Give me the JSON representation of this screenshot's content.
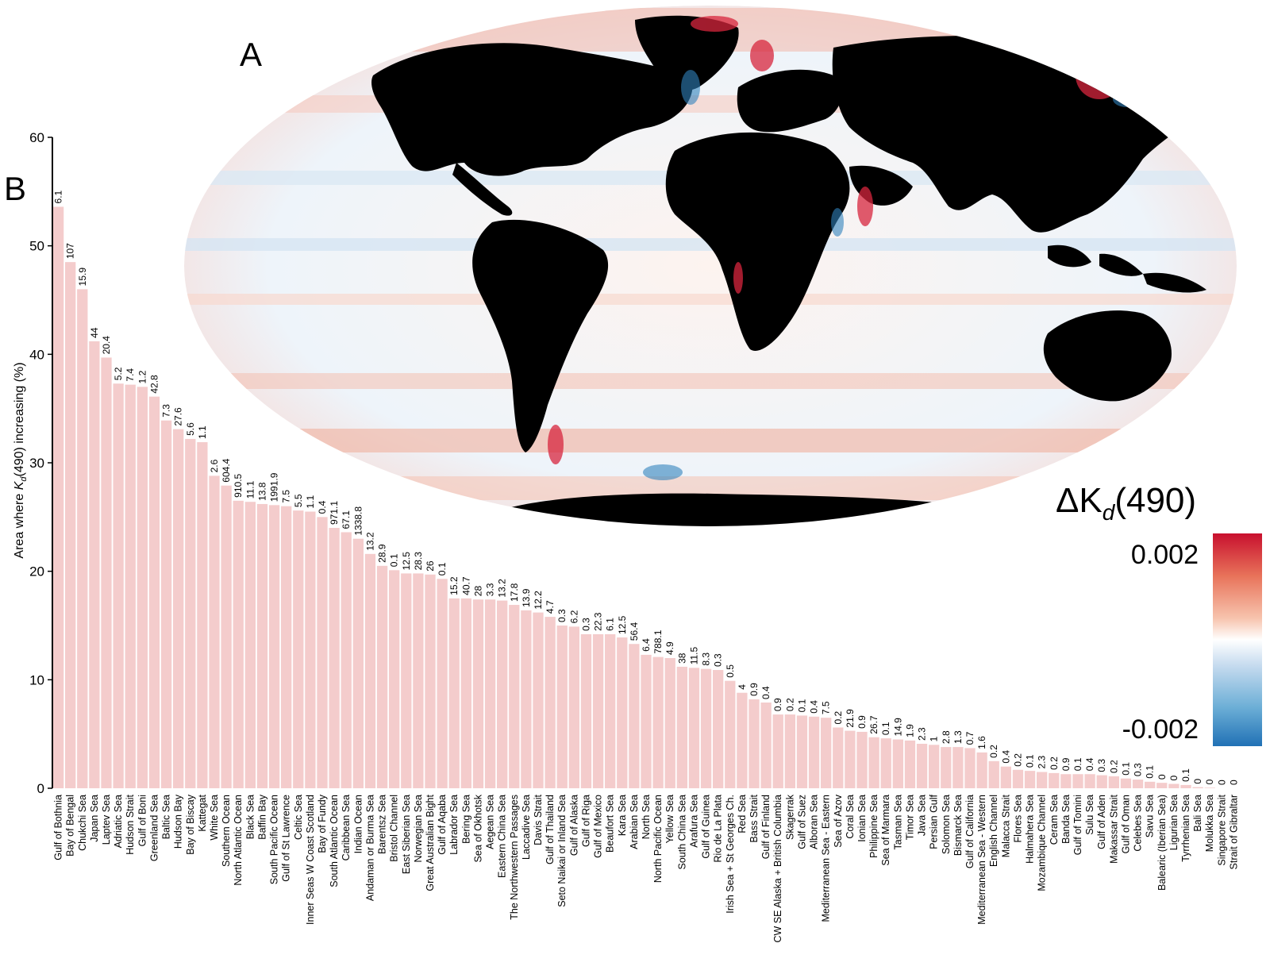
{
  "panels": {
    "map_label": "A",
    "chart_label": "B"
  },
  "map": {
    "type": "heatmap",
    "projection": "mollweide",
    "colorbar": {
      "title": "ΔK",
      "title_sub": "d",
      "title_suffix": "(490)",
      "max_label": "0.002",
      "min_label": "-0.002",
      "colors": [
        "#c8102e",
        "#e8735a",
        "#f7c4ae",
        "#ffffff",
        "#c6dbef",
        "#6baed6",
        "#2171b5"
      ]
    }
  },
  "chart_data": {
    "type": "bar",
    "ylabel": "Area where ",
    "ylabel_var": "K",
    "ylabel_sub": "d",
    "ylabel_suffix": "(490) increasing (%)",
    "ylim": [
      0,
      60
    ],
    "yticks": [
      0,
      10,
      20,
      30,
      40,
      50,
      60
    ],
    "bar_color": "#f4cccc",
    "categories": [
      "Gulf of Bothnia",
      "Bay of Bengal",
      "Chukchi Sea",
      "Japan Sea",
      "Laptev Sea",
      "Adriatic Sea",
      "Hudson Strait",
      "Gulf of Boni",
      "Greenland Sea",
      "Baltic Sea",
      "Hudson Bay",
      "Bay of Biscay",
      "Kattegat",
      "White Sea",
      "Southern Ocean",
      "North Atlantic Ocean",
      "Black Sea",
      "Baffin Bay",
      "South Pacific Ocean",
      "Gulf of St Lawrence",
      "Celtic Sea",
      "Inner Seas W Coast Scotland",
      "Bay of Fundy",
      "South Atlantic Ocean",
      "Caribbean Sea",
      "Indian Ocean",
      "Andaman or Burma Sea",
      "Barentsz Sea",
      "Bristol Channel",
      "East Siberian Sea",
      "Norwegian Sea",
      "Great Australian Bight",
      "Gulf of Aqaba",
      "Labrador Sea",
      "Bering Sea",
      "Sea of Okhotsk",
      "Aegean Sea",
      "Eastern China Sea",
      "The Northwestern Passages",
      "Laccadive Sea",
      "Davis Strait",
      "Gulf of Thailand",
      "Seto Naikai or Inland Sea",
      "Gulf of Alaska",
      "Gulf of Riga",
      "Gulf of Mexico",
      "Beaufort Sea",
      "Kara Sea",
      "Arabian Sea",
      "North Sea",
      "North Pacific Ocean",
      "Yellow Sea",
      "South China Sea",
      "Arafura Sea",
      "Gulf of Guinea",
      "Rio de La Plata",
      "Irish Sea + St Georges Ch.",
      "Red Sea",
      "Bass Strait",
      "Gulf of Finland",
      "CW SE Alaska + British Columbia",
      "Skagerrak",
      "Gulf of Suez",
      "Alboran Sea",
      "Mediterranean Sea - Eastern",
      "Sea of Azov",
      "Coral Sea",
      "Ionian Sea",
      "Philippine Sea",
      "Sea of Marmara",
      "Tasman Sea",
      "Timor Sea",
      "Java Sea",
      "Persian Gulf",
      "Solomon Sea",
      "Bismarck Sea",
      "Gulf of California",
      "Mediterranean Sea - Western",
      "English Channel",
      "Malacca Strait",
      "Flores Sea",
      "Halmahera Sea",
      "Mozambique Channel",
      "Ceram Sea",
      "Banda Sea",
      "Gulf of Tomini",
      "Sulu Sea",
      "Gulf of Aden",
      "Makassar Strait",
      "Gulf of Oman",
      "Celebes Sea",
      "Savu Sea",
      "Balearic (Iberian Sea)",
      "Ligurian Sea",
      "Tyrrhenian Sea",
      "Bali Sea",
      "Molukka Sea",
      "Singapore Strait",
      "Strait of Gibraltar"
    ],
    "values": [
      53.6,
      48.5,
      46.0,
      41.2,
      39.7,
      37.3,
      37.2,
      37.0,
      36.1,
      33.9,
      33.1,
      32.2,
      31.9,
      28.8,
      27.9,
      26.5,
      26.4,
      26.2,
      26.1,
      26.0,
      25.6,
      25.5,
      25.0,
      24.0,
      23.6,
      23.0,
      21.6,
      20.5,
      20.1,
      19.8,
      19.8,
      19.7,
      19.3,
      17.5,
      17.5,
      17.4,
      17.4,
      17.3,
      16.9,
      16.4,
      16.2,
      15.8,
      15.0,
      14.9,
      14.2,
      14.2,
      14.2,
      13.9,
      13.3,
      12.3,
      12.1,
      12.0,
      11.2,
      11.1,
      11.0,
      10.9,
      9.9,
      8.8,
      8.2,
      7.9,
      6.8,
      6.8,
      6.7,
      6.6,
      6.5,
      5.6,
      5.3,
      5.2,
      4.7,
      4.6,
      4.5,
      4.4,
      4.1,
      4.0,
      3.8,
      3.8,
      3.7,
      3.3,
      2.5,
      2.0,
      1.7,
      1.6,
      1.5,
      1.4,
      1.3,
      1.3,
      1.3,
      1.2,
      1.1,
      0.9,
      0.8,
      0.6,
      0.5,
      0.4,
      0.3,
      0.1,
      0.05,
      0.0,
      0.0
    ],
    "data_labels": [
      "6.1",
      "107",
      "15.9",
      "44",
      "20.4",
      "5.2",
      "7.4",
      "1.2",
      "42.8",
      "7.3",
      "27.6",
      "5.6",
      "1.1",
      "2.6",
      "604.4",
      "910.5",
      "11.1",
      "13.8",
      "1991.9",
      "7.5",
      "5.5",
      "1.1",
      "0.4",
      "971.1",
      "67.1",
      "1338.8",
      "13.2",
      "28.9",
      "0.1",
      "12.5",
      "28.3",
      "26",
      "0.1",
      "15.2",
      "40.7",
      "28",
      "3.3",
      "13.2",
      "17.8",
      "13.9",
      "12.2",
      "4.7",
      "0.3",
      "6.2",
      "0.3",
      "22.3",
      "6.1",
      "12.5",
      "56.4",
      "6.4",
      "788.1",
      "4.9",
      "38",
      "11.5",
      "8.3",
      "0.3",
      "0.5",
      "4",
      "0.9",
      "0.4",
      "0.9",
      "0.2",
      "0.1",
      "0.4",
      "7.5",
      "0.2",
      "21.9",
      "0.9",
      "26.7",
      "0.1",
      "14.9",
      "1.9",
      "2.3",
      "1",
      "2.8",
      "1.3",
      "0.7",
      "1.6",
      "0.2",
      "0.4",
      "0.2",
      "0.1",
      "2.3",
      "0.2",
      "0.9",
      "0.1",
      "0.4",
      "0.3",
      "0.2",
      "0.1",
      "0.3",
      "0.1",
      "0",
      "0",
      "0.1",
      "0",
      "0",
      "0",
      "0"
    ]
  }
}
